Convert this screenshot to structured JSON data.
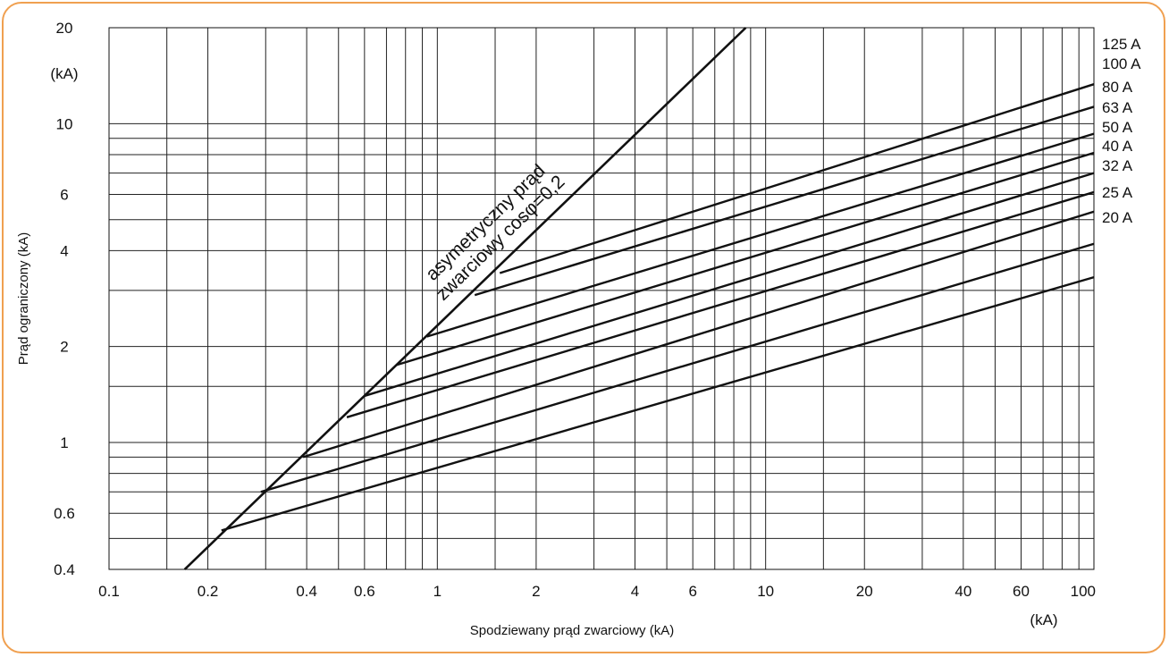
{
  "chart_data": {
    "type": "line",
    "xscale": "log",
    "yscale": "log",
    "xlim": [
      0.1,
      100
    ],
    "ylim": [
      0.4,
      20
    ],
    "xlabel": "Spodziewany prąd zwarciowy (kA)",
    "ylabel": "Prąd ograniczony (kA)",
    "x_unit_label": "(kA)",
    "y_unit_label": "(kA)",
    "grid": true,
    "x_gridlines": [
      0.15,
      0.2,
      0.3,
      0.4,
      0.5,
      0.6,
      0.7,
      0.8,
      0.9,
      1,
      1.5,
      2,
      3,
      4,
      5,
      6,
      7,
      8,
      9,
      10,
      15,
      20,
      30,
      40,
      50,
      60,
      70,
      80,
      90
    ],
    "y_gridlines": [
      0.5,
      0.6,
      0.7,
      0.8,
      0.9,
      1,
      1.5,
      2,
      3,
      4,
      5,
      6,
      7,
      8,
      9,
      10
    ],
    "x_ticks": [
      {
        "v": 0.1,
        "label": "0.1"
      },
      {
        "v": 0.2,
        "label": "0.2"
      },
      {
        "v": 0.4,
        "label": "0.4"
      },
      {
        "v": 0.6,
        "label": "0.6"
      },
      {
        "v": 1,
        "label": "1"
      },
      {
        "v": 2,
        "label": "2"
      },
      {
        "v": 4,
        "label": "4"
      },
      {
        "v": 6,
        "label": "6"
      },
      {
        "v": 10,
        "label": "10"
      },
      {
        "v": 20,
        "label": "20"
      },
      {
        "v": 40,
        "label": "40"
      },
      {
        "v": 60,
        "label": "60"
      },
      {
        "v": 100,
        "label": "100"
      }
    ],
    "y_ticks": [
      {
        "v": 0.4,
        "label": "0.4"
      },
      {
        "v": 0.6,
        "label": "0.6"
      },
      {
        "v": 1,
        "label": "1"
      },
      {
        "v": 2,
        "label": "2"
      },
      {
        "v": 4,
        "label": "4"
      },
      {
        "v": 6,
        "label": "6"
      },
      {
        "v": 10,
        "label": "10"
      },
      {
        "v": 20,
        "label": "20"
      }
    ],
    "envelope": {
      "label_line1": "asymetryczny prąd",
      "label_line2": "zwarciowy cosφ=0,2",
      "x": [
        0.17,
        8.7
      ],
      "y": [
        0.4,
        20
      ]
    },
    "series": [
      {
        "name": "125 A",
        "x": [
          1.55,
          100
        ],
        "y": [
          3.4,
          13.3
        ]
      },
      {
        "name": "100 A",
        "x": [
          1.3,
          100
        ],
        "y": [
          2.9,
          11.3
        ]
      },
      {
        "name": "80 A",
        "x": [
          0.93,
          100
        ],
        "y": [
          2.15,
          9.3
        ]
      },
      {
        "name": "63 A",
        "x": [
          0.75,
          100
        ],
        "y": [
          1.75,
          8.1
        ]
      },
      {
        "name": "50 A",
        "x": [
          0.6,
          100
        ],
        "y": [
          1.4,
          7.0
        ]
      },
      {
        "name": "40 A",
        "x": [
          0.53,
          100
        ],
        "y": [
          1.2,
          6.1
        ]
      },
      {
        "name": "32 A",
        "x": [
          0.39,
          100
        ],
        "y": [
          0.9,
          5.3
        ]
      },
      {
        "name": "25 A",
        "x": [
          0.29,
          100
        ],
        "y": [
          0.7,
          4.2
        ]
      },
      {
        "name": "20 A",
        "x": [
          0.22,
          100
        ],
        "y": [
          0.53,
          3.3
        ]
      }
    ]
  }
}
